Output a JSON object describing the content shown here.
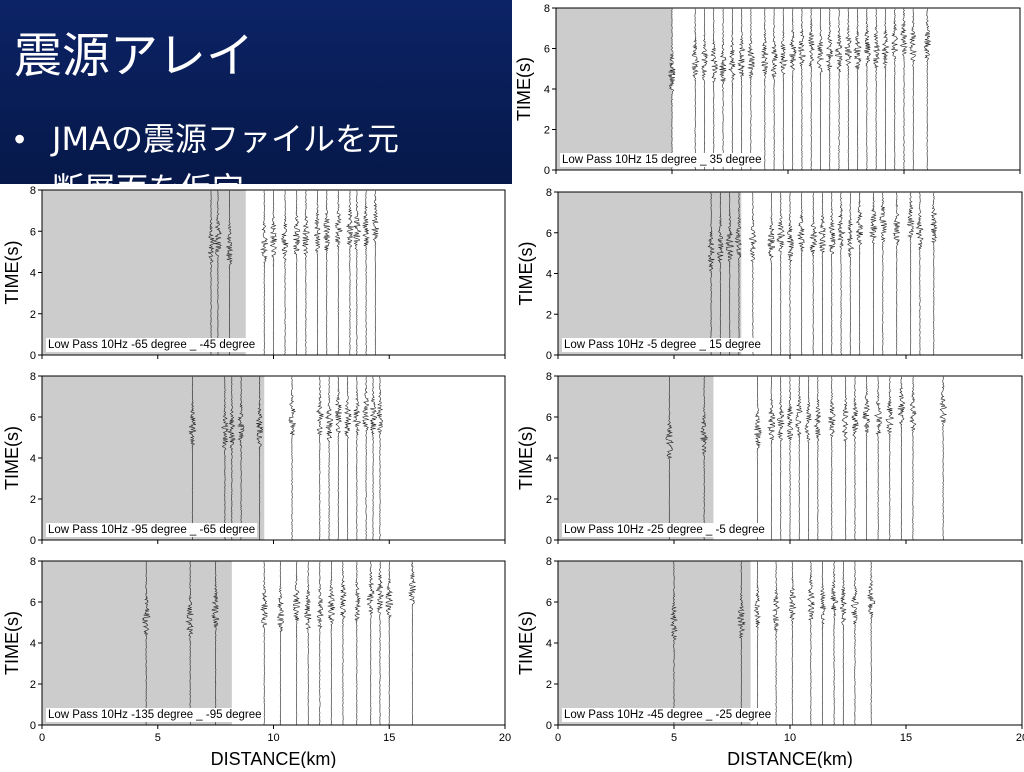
{
  "slide": {
    "title": "震源アレイ",
    "bullet": "JMAの震源ファイルを元",
    "bullet_line2": "断層面を仮定"
  },
  "axes": {
    "xlim": [
      0,
      20
    ],
    "ylim": [
      0,
      8
    ],
    "xticks": [
      0,
      5,
      10,
      15,
      20
    ],
    "yticks": [
      0,
      2,
      4,
      6,
      8
    ],
    "ylabel": "TIME(s)",
    "xlabel": "DISTANCE(km)"
  },
  "panels": [
    {
      "label": "Low Pass 10Hz 15 degree _ 35 degree",
      "shade_end": 5.0,
      "traces": [
        5.0,
        6.0,
        6.4,
        6.8,
        7.2,
        7.6,
        8.0,
        8.4,
        9.0,
        9.4,
        9.8,
        10.2,
        10.6,
        11.0,
        11.4,
        11.8,
        12.2,
        12.6,
        13.0,
        13.4,
        13.8,
        14.2,
        14.6,
        15.0,
        15.4,
        16.0
      ]
    },
    {
      "label": "Low Pass 10Hz -65 degree _ -45 degree",
      "shade_end": 8.8,
      "traces": [
        7.3,
        7.6,
        8.1,
        9.6,
        10.0,
        10.5,
        11.0,
        11.4,
        11.9,
        12.3,
        12.8,
        13.3,
        13.6,
        14.0,
        14.4
      ]
    },
    {
      "label": "Low Pass 10Hz -5 degree _ 15 degree",
      "shade_end": 7.9,
      "traces": [
        6.6,
        7.0,
        7.4,
        7.8,
        8.4,
        9.2,
        9.6,
        10.0,
        10.5,
        11.0,
        11.4,
        11.8,
        12.2,
        12.6,
        13.0,
        13.6,
        14.0,
        14.6,
        15.2,
        15.6,
        16.2
      ]
    },
    {
      "label": "Low Pass 10Hz -95 degree _ -65 degree",
      "shade_end": 9.6,
      "traces": [
        6.5,
        7.9,
        8.2,
        8.6,
        9.4,
        10.8,
        12.0,
        12.4,
        12.8,
        13.2,
        13.6,
        14.0,
        14.3,
        14.6
      ]
    },
    {
      "label": "Low Pass 10Hz -25 degree _ -5 degree",
      "shade_end": 6.7,
      "traces": [
        4.8,
        6.3,
        8.6,
        9.2,
        9.6,
        10.0,
        10.4,
        10.8,
        11.2,
        11.8,
        12.4,
        12.8,
        13.3,
        13.8,
        14.3,
        14.8,
        15.3,
        16.6
      ]
    },
    {
      "label": "Low Pass 10Hz -135 degree _ -95 degree",
      "shade_end": 8.2,
      "traces": [
        4.5,
        6.4,
        7.5,
        9.6,
        10.3,
        11.0,
        11.5,
        12.0,
        12.5,
        13.0,
        13.6,
        14.2,
        14.6,
        15.0,
        16.0
      ]
    },
    {
      "label": "Low Pass 10Hz -45 degree _ -25 degree",
      "shade_end": 8.3,
      "traces": [
        5.0,
        7.9,
        8.6,
        9.4,
        10.1,
        10.9,
        11.4,
        11.9,
        12.3,
        12.8,
        13.5
      ]
    }
  ]
}
